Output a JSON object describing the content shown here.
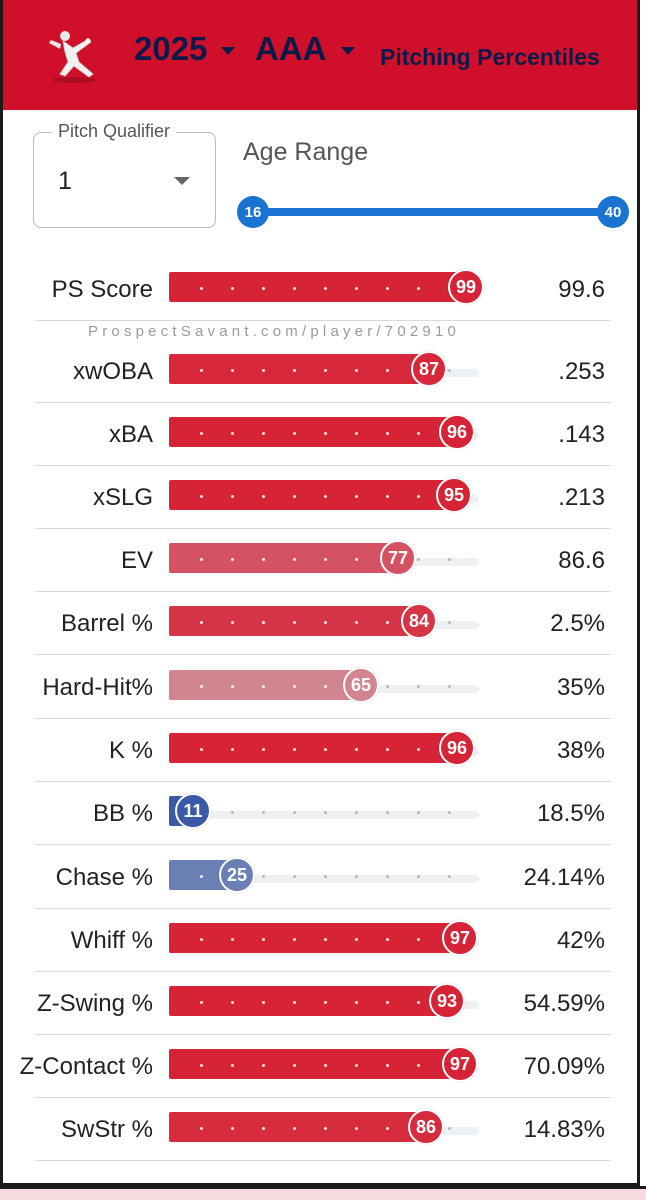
{
  "header": {
    "year": "2025",
    "level": "AAA",
    "title": "Pitching Percentiles",
    "icon": "pitcher-icon"
  },
  "filters": {
    "qualifier_legend": "Pitch Qualifier",
    "qualifier_value": "1",
    "age_range_label": "Age Range",
    "age_min": "16",
    "age_max": "40"
  },
  "watermark": "ProspectSavant.com/player/702910",
  "colors": {
    "header_red": "#d0102a",
    "title_navy": "#0c1a4a",
    "slider_blue": "#1a73d1",
    "high_red": "#d62436",
    "low_blue": "#3a5aa6"
  },
  "stats": [
    {
      "label": "PS Score",
      "percentile": 99,
      "value": "99.6"
    },
    {
      "label": "xwOBA",
      "percentile": 87,
      "value": ".253"
    },
    {
      "label": "xBA",
      "percentile": 96,
      "value": ".143"
    },
    {
      "label": "xSLG",
      "percentile": 95,
      "value": ".213"
    },
    {
      "label": "EV",
      "percentile": 77,
      "value": "86.6"
    },
    {
      "label": "Barrel %",
      "percentile": 84,
      "value": "2.5%"
    },
    {
      "label": "Hard-Hit%",
      "percentile": 65,
      "value": "35%"
    },
    {
      "label": "K %",
      "percentile": 96,
      "value": "38%"
    },
    {
      "label": "BB %",
      "percentile": 11,
      "value": "18.5%"
    },
    {
      "label": "Chase %",
      "percentile": 25,
      "value": "24.14%"
    },
    {
      "label": "Whiff %",
      "percentile": 97,
      "value": "42%"
    },
    {
      "label": "Z-Swing %",
      "percentile": 93,
      "value": "54.59%"
    },
    {
      "label": "Z-Contact %",
      "percentile": 97,
      "value": "70.09%"
    },
    {
      "label": "SwStr %",
      "percentile": 86,
      "value": "14.83%"
    }
  ]
}
